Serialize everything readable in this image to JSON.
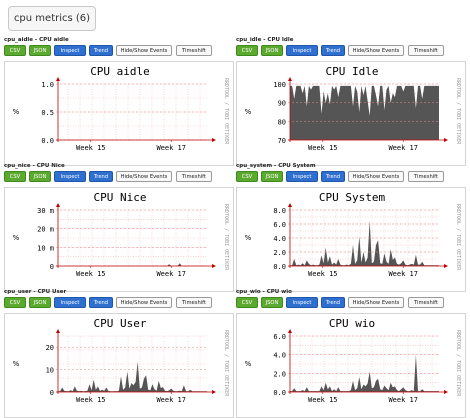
{
  "page": {
    "title": "cpu metrics (6)"
  },
  "buttons": {
    "csv": "CSV",
    "json": "JSON",
    "inspect": "Inspect",
    "trend": "Trend",
    "hide": "Hide/Show Events",
    "timeshift": "Timeshift"
  },
  "watermark": "RRDTOOL / TOBI OETIKER",
  "colors": {
    "area": "#555555",
    "grid": "#f3b3b3",
    "axis": "#c00000",
    "button_green": "#5ba92f",
    "button_blue": "#2f6fcf"
  },
  "panels": [
    {
      "header": "cpu_aidle - CPU aidle",
      "chart_data": {
        "type": "area",
        "title": "CPU aidle",
        "ylabel": "%",
        "ylim": [
          0,
          1.0
        ],
        "yticks": [
          0.0,
          0.5,
          1.0
        ],
        "ytick_labels": [
          "0.0",
          "0.5",
          "1.0"
        ],
        "xticks": [
          "Week 15",
          "Week 17"
        ],
        "series": []
      }
    },
    {
      "header": "cpu_idle - CPU Idle",
      "chart_data": {
        "type": "area",
        "title": "CPU Idle",
        "ylabel": "%",
        "ylim": [
          70,
          100
        ],
        "yticks": [
          70,
          80,
          90,
          100
        ],
        "ytick_labels": [
          "70",
          "80",
          "90",
          "100"
        ],
        "xticks": [
          "Week 15",
          "Week 17"
        ],
        "series": [
          {
            "values": [
              99,
              99,
              92,
              99,
              99,
              99,
              95,
              99,
              88,
              99,
              97,
              99,
              99,
              99,
              99,
              84,
              96,
              90,
              95,
              89,
              99,
              97,
              99,
              93,
              99,
              99,
              99,
              99,
              99,
              99,
              88,
              99,
              96,
              85,
              99,
              94,
              99,
              91,
              83,
              99,
              99,
              94,
              88,
              99,
              99,
              86,
              97,
              99,
              90,
              95,
              93,
              99,
              99,
              99,
              96,
              99,
              99,
              99,
              99,
              99,
              87,
              99,
              99,
              92,
              99,
              99,
              99,
              99,
              99,
              99,
              99,
              99
            ]
          }
        ]
      }
    },
    {
      "header": "cpu_nice - CPU Nice",
      "chart_data": {
        "type": "area",
        "title": "CPU Nice",
        "ylabel": "%",
        "ylim": [
          0,
          30
        ],
        "yticks": [
          0,
          10,
          20,
          30
        ],
        "ytick_labels": [
          "0",
          "10 m",
          "20 m",
          "30 m"
        ],
        "xticks": [
          "Week 15",
          "Week 17"
        ],
        "series": [
          {
            "values": [
              0,
              0,
              0,
              0,
              0,
              0,
              0,
              0,
              0,
              0,
              0,
              0,
              0,
              0,
              0,
              0,
              0,
              0,
              0,
              0,
              0,
              0,
              0,
              0,
              0,
              0,
              0,
              0,
              0,
              0,
              0,
              0,
              0,
              0,
              0,
              0,
              0,
              0,
              0,
              0,
              0,
              0,
              0,
              0,
              0,
              0,
              0,
              0,
              0,
              0,
              0,
              0,
              0,
              1,
              0,
              0,
              0,
              0,
              1.5,
              0,
              0,
              0,
              0,
              0,
              0,
              0,
              0,
              0,
              0,
              0,
              0,
              0
            ]
          }
        ]
      }
    },
    {
      "header": "cpu_system - CPU System",
      "chart_data": {
        "type": "area",
        "title": "CPU System",
        "ylabel": "%",
        "ylim": [
          0,
          8.0
        ],
        "yticks": [
          0,
          2,
          4,
          6,
          8
        ],
        "ytick_labels": [
          "0.0",
          "2.0",
          "4.0",
          "6.0",
          "8.0"
        ],
        "xticks": [
          "Week 15",
          "Week 17"
        ],
        "series": [
          {
            "values": [
              0.1,
              0.1,
              1.0,
              0.1,
              0.2,
              0.1,
              0.4,
              0.1,
              0.8,
              0.3,
              0.1,
              0.2,
              0.1,
              0.1,
              0.2,
              1.5,
              0.4,
              2.6,
              0.5,
              1.4,
              0.2,
              0.5,
              0.2,
              1.0,
              0.2,
              0.1,
              0.1,
              0.2,
              0.1,
              0.3,
              3.0,
              0.3,
              0.8,
              4.2,
              0.5,
              2.0,
              0.5,
              1.2,
              6.5,
              0.4,
              0.6,
              3.0,
              3.7,
              0.4,
              0.3,
              1.8,
              0.6,
              0.3,
              2.4,
              0.9,
              1.2,
              0.3,
              0.2,
              0.4,
              0.8,
              0.2,
              0.1,
              0.2,
              0.3,
              0.2,
              1.6,
              0.2,
              0.2,
              0.6,
              0.1,
              0.1,
              0.1,
              0.1,
              0.1,
              0.1,
              0.1,
              0.1
            ]
          }
        ]
      }
    },
    {
      "header": "cpu_user - CPU User",
      "chart_data": {
        "type": "area",
        "title": "CPU User",
        "ylabel": "%",
        "ylim": [
          0,
          25
        ],
        "yticks": [
          0,
          10,
          20
        ],
        "ytick_labels": [
          "0",
          "10",
          "20"
        ],
        "xticks": [
          "Week 15",
          "Week 17"
        ],
        "series": [
          {
            "values": [
              0.3,
              0.4,
              2.0,
              0.5,
              0.4,
              0.3,
              0.8,
              0.4,
              2.5,
              0.6,
              0.4,
              0.5,
              0.3,
              0.4,
              0.5,
              3.5,
              0.8,
              5.5,
              1.0,
              2.5,
              0.5,
              1.0,
              0.5,
              2.0,
              0.5,
              0.3,
              0.3,
              0.4,
              0.3,
              0.6,
              7.0,
              1.0,
              2.0,
              9.0,
              1.5,
              4.0,
              3.0,
              4.5,
              13.5,
              1.5,
              2.0,
              6.0,
              7.5,
              1.0,
              0.8,
              3.5,
              1.2,
              0.6,
              5.0,
              1.8,
              2.2,
              0.6,
              0.4,
              0.8,
              1.5,
              0.5,
              0.3,
              0.4,
              0.6,
              0.4,
              3.0,
              0.4,
              0.3,
              1.0,
              0.3,
              0.3,
              0.3,
              0.3,
              0.3,
              0.3,
              0.3,
              0.3
            ]
          }
        ]
      }
    },
    {
      "header": "cpu_wio - CPU wio",
      "chart_data": {
        "type": "area",
        "title": "CPU wio",
        "ylabel": "%",
        "ylim": [
          0,
          6.0
        ],
        "yticks": [
          0,
          2,
          4,
          6
        ],
        "ytick_labels": [
          "0.0",
          "2.0",
          "4.0",
          "6.0"
        ],
        "xticks": [
          "Week 15",
          "Week 17"
        ],
        "series": [
          {
            "values": [
              0.1,
              0.1,
              0.4,
              0.1,
              0.1,
              0.1,
              0.2,
              0.1,
              0.5,
              0.1,
              0.1,
              0.1,
              0.1,
              0.1,
              0.1,
              0.6,
              0.2,
              1.0,
              0.3,
              0.6,
              0.1,
              0.3,
              0.1,
              0.5,
              0.1,
              0.1,
              0.1,
              0.1,
              0.1,
              0.2,
              1.2,
              0.2,
              0.4,
              1.6,
              0.3,
              0.8,
              0.6,
              0.9,
              2.2,
              0.4,
              0.5,
              1.2,
              1.4,
              0.3,
              0.2,
              0.7,
              0.4,
              0.2,
              1.0,
              0.5,
              0.6,
              0.2,
              0.1,
              0.3,
              0.5,
              0.2,
              0.1,
              0.1,
              0.2,
              0.1,
              4.0,
              0.1,
              0.1,
              0.3,
              0.1,
              0.1,
              0.1,
              0.1,
              0.1,
              0.1,
              0.1,
              0.1
            ]
          }
        ]
      }
    }
  ]
}
